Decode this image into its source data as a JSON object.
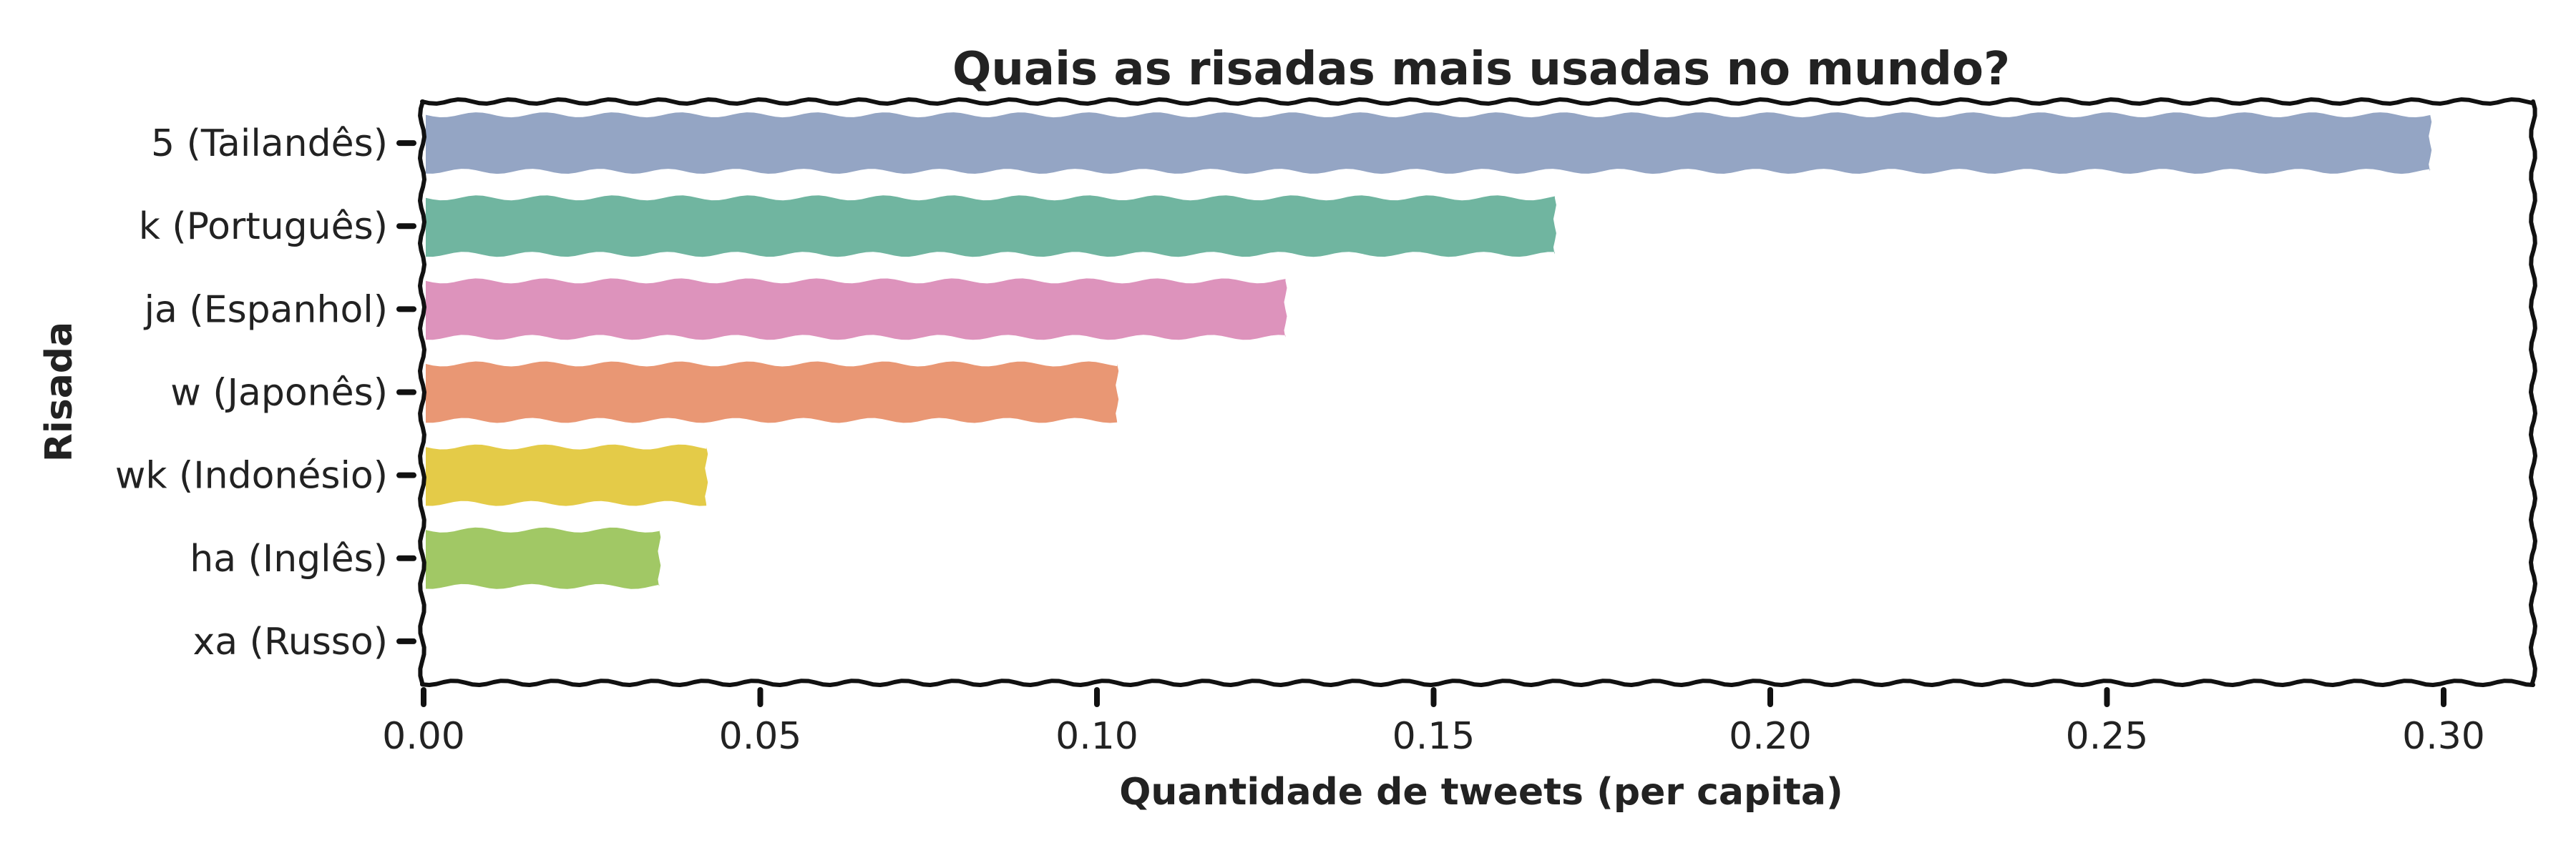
{
  "chart_data": {
    "type": "bar",
    "orientation": "horizontal",
    "title": "Quais as risadas mais usadas no mundo?",
    "xlabel": "Quantidade de tweets (per capita)",
    "ylabel": "Risada",
    "categories": [
      "5 (Tailandês)",
      "k (Português)",
      "ja (Espanhol)",
      "w (Japonês)",
      "wk (Indonésio)",
      "ha (Inglês)",
      "xa (Russo)"
    ],
    "values": [
      0.298,
      0.168,
      0.128,
      0.103,
      0.042,
      0.035,
      0.0
    ],
    "colors": [
      "#94a5c4",
      "#70b5a0",
      "#dd93bc",
      "#e99774",
      "#e4cb48",
      "#a1c865",
      "#b9b9b9"
    ],
    "xlim": [
      0,
      0.312
    ],
    "xticks": [
      "0.00",
      "0.05",
      "0.10",
      "0.15",
      "0.20",
      "0.25",
      "0.30"
    ],
    "grid": false,
    "style": "xkcd"
  }
}
